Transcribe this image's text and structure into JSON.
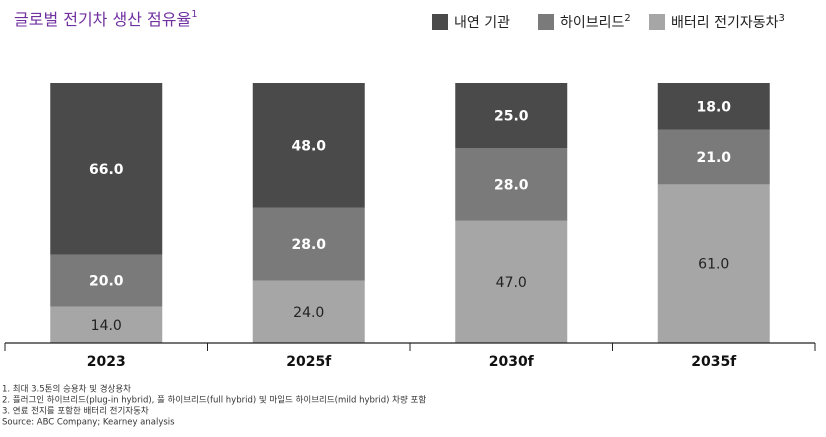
{
  "chart_data": {
    "type": "stacked_bar",
    "title": "글로벌 전기차 생산 점유율",
    "title_note": "1",
    "categories": [
      "2023",
      "2025f",
      "2030f",
      "2035f"
    ],
    "series": [
      {
        "name": "배터리 전기자동차",
        "note": "3",
        "color": "#a6a6a6",
        "values": [
          14,
          24,
          47,
          61
        ],
        "value_labels": [
          "14.0",
          "24.0",
          "47.0",
          "61.0"
        ]
      },
      {
        "name": "하이브리드",
        "note": "2",
        "color": "#7a7a7a",
        "values": [
          20,
          28,
          28,
          21
        ],
        "value_labels": [
          "20.0",
          "28.0",
          "28.0",
          "21.0"
        ]
      },
      {
        "name": "내연 기관",
        "color": "#4a4a4a",
        "values": [
          66,
          48,
          25,
          18
        ],
        "value_labels": [
          "66.0",
          "48.0",
          "25.0",
          "18.0"
        ]
      }
    ],
    "ylim": [
      0,
      100
    ],
    "footnotes": [
      "1. 최대 3.5톤의 승용차 및 경상용차",
      "2. 플러그인 하이브리드(plug-in hybrid), 풀 하이브리드(full hybrid) 및 마일드 하이브리드(mild hybrid) 차량 포함",
      "3. 연료 전지를 포함한 배터리 전기자동차"
    ],
    "source": "Source: ABC Company; Kearney analysis"
  }
}
